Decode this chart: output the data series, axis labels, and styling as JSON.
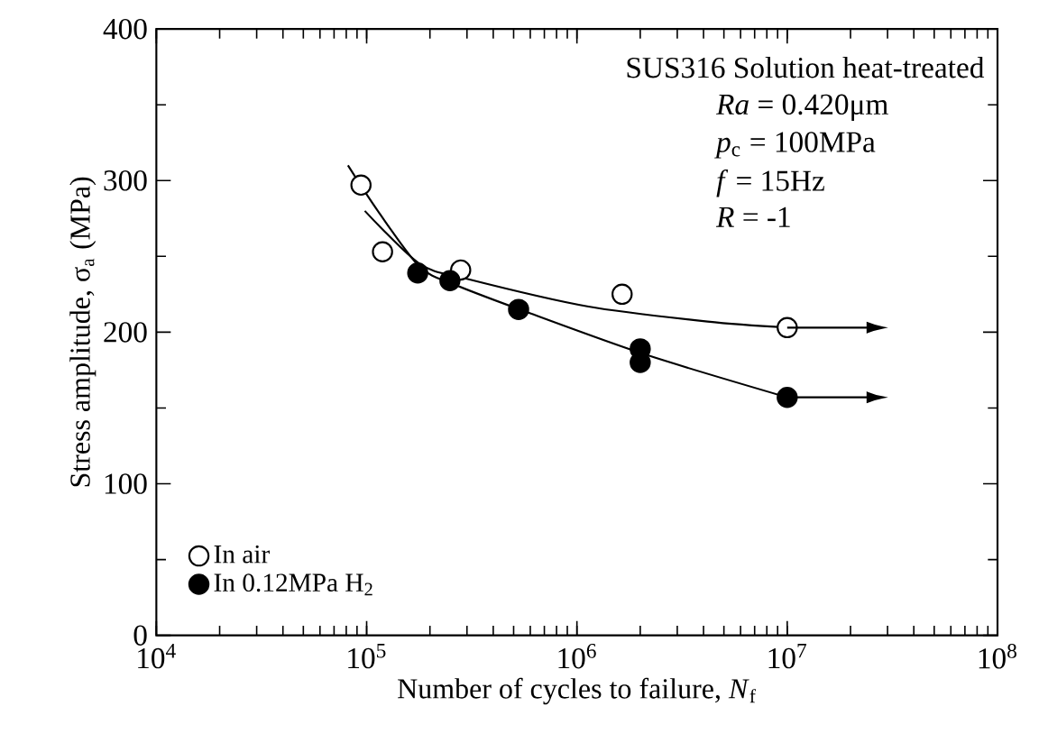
{
  "chart_data": {
    "type": "scatter",
    "xlabel": "Number of cycles to failure, *N*$_{f}$",
    "ylabel": "Stress amplitude, σ$_{a}$ (MPa)",
    "log": "x",
    "xlim": [
      10000,
      100000000
    ],
    "xticks": [
      {
        "value": 10000,
        "label": "10$^{4}$"
      },
      {
        "value": 100000,
        "label": "10$^{5}$"
      },
      {
        "value": 1000000,
        "label": "10$^{6}$"
      },
      {
        "value": 10000000,
        "label": "10$^{7}$"
      },
      {
        "value": 100000000,
        "label": "10$^{8}$"
      }
    ],
    "ylim": [
      0,
      400
    ],
    "yticks": [
      0,
      100,
      200,
      300,
      400
    ],
    "grid": false,
    "legend": "bottom left",
    "annotations": [
      "SUS316 Solution heat-treated",
      "*Ra*  = 0.420μm",
      "*p*$_{c}$  = 100MPa",
      "*f*    = 15Hz",
      "*R*   = -1"
    ],
    "series": [
      {
        "name": "In air",
        "color": "#ffffff",
        "marker": "circle",
        "x": [
          94000,
          119000,
          280000,
          1640000,
          10000000
        ],
        "values": [
          297,
          253,
          241,
          225,
          203
        ]
      },
      {
        "name": "In 0.12MPa H$_{2}$",
        "color": "#000000",
        "marker": "circle",
        "x": [
          175000,
          249000,
          528000,
          2000000,
          2000000,
          10000000
        ],
        "values": [
          239,
          234,
          215,
          189,
          180,
          157
        ]
      },
      {
        "type": "line",
        "color": "#000000",
        "marker": "none",
        "x": [
          98000,
          179000,
          303000,
          1120000,
          4180000,
          10000000
        ],
        "values": [
          280,
          245,
          235,
          217,
          207,
          203
        ]
      },
      {
        "type": "line",
        "color": "#000000",
        "marker": "none",
        "x": [
          81500,
          113000,
          179000,
          266000,
          584000,
          2140000,
          10000000
        ],
        "values": [
          310,
          280,
          243,
          231,
          213,
          185,
          157
        ]
      }
    ]
  }
}
